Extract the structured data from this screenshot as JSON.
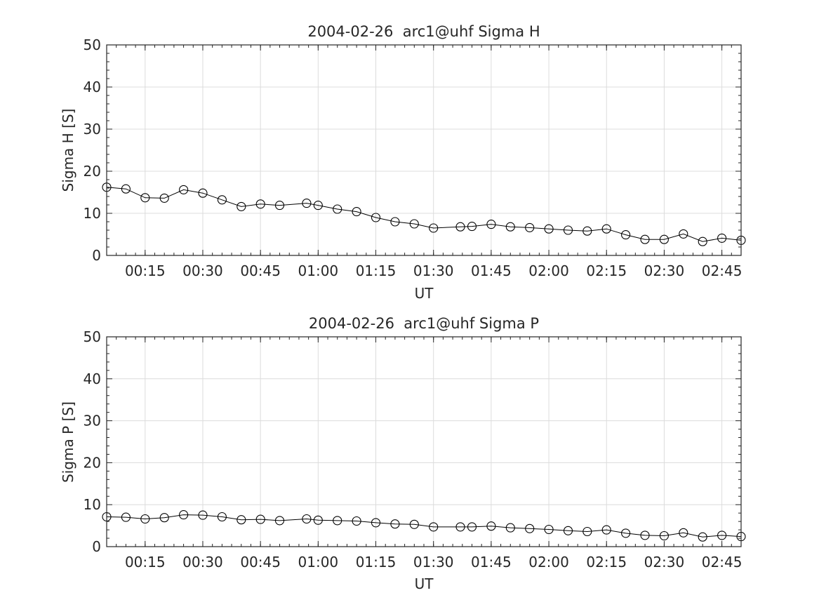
{
  "chart_data": [
    {
      "type": "line",
      "title": "2004-02-26  arc1@uhf Sigma H",
      "xlabel": "UT",
      "ylabel": "Sigma H [S]",
      "xlim": [
        "00:05",
        "02:50"
      ],
      "ylim": [
        0,
        50
      ],
      "yticks": [
        0,
        10,
        20,
        30,
        40,
        50
      ],
      "xticks": [
        "00:15",
        "00:30",
        "00:45",
        "01:00",
        "01:15",
        "01:30",
        "01:45",
        "02:00",
        "02:15",
        "02:30",
        "02:45"
      ],
      "grid": true,
      "marker": "open-circle",
      "line_color": "#000000",
      "x": [
        "00:05",
        "00:10",
        "00:15",
        "00:20",
        "00:25",
        "00:30",
        "00:35",
        "00:40",
        "00:45",
        "00:50",
        "00:57",
        "01:00",
        "01:05",
        "01:10",
        "01:15",
        "01:20",
        "01:25",
        "01:30",
        "01:37",
        "01:40",
        "01:45",
        "01:50",
        "01:55",
        "02:00",
        "02:05",
        "02:10",
        "02:15",
        "02:20",
        "02:25",
        "02:30",
        "02:35",
        "02:40",
        "02:45",
        "02:50"
      ],
      "values": [
        16.2,
        15.8,
        13.7,
        13.6,
        15.6,
        14.8,
        13.2,
        11.6,
        12.2,
        11.9,
        12.4,
        11.9,
        11.0,
        10.4,
        9.0,
        8.0,
        7.5,
        6.5,
        6.8,
        6.9,
        7.4,
        6.8,
        6.6,
        6.3,
        6.0,
        5.8,
        6.3,
        4.9,
        3.8,
        3.8,
        5.1,
        3.3,
        4.1,
        3.6
      ]
    },
    {
      "type": "line",
      "title": "2004-02-26  arc1@uhf Sigma P",
      "xlabel": "UT",
      "ylabel": "Sigma P [S]",
      "xlim": [
        "00:05",
        "02:50"
      ],
      "ylim": [
        0,
        50
      ],
      "yticks": [
        0,
        10,
        20,
        30,
        40,
        50
      ],
      "xticks": [
        "00:15",
        "00:30",
        "00:45",
        "01:00",
        "01:15",
        "01:30",
        "01:45",
        "02:00",
        "02:15",
        "02:30",
        "02:45"
      ],
      "grid": true,
      "marker": "open-circle",
      "line_color": "#000000",
      "x": [
        "00:05",
        "00:10",
        "00:15",
        "00:20",
        "00:25",
        "00:30",
        "00:35",
        "00:40",
        "00:45",
        "00:50",
        "00:57",
        "01:00",
        "01:05",
        "01:10",
        "01:15",
        "01:20",
        "01:25",
        "01:30",
        "01:37",
        "01:40",
        "01:45",
        "01:50",
        "01:55",
        "02:00",
        "02:05",
        "02:10",
        "02:15",
        "02:20",
        "02:25",
        "02:30",
        "02:35",
        "02:40",
        "02:45",
        "02:50"
      ],
      "values": [
        7.1,
        7.0,
        6.6,
        6.9,
        7.6,
        7.5,
        7.1,
        6.4,
        6.5,
        6.2,
        6.6,
        6.3,
        6.2,
        6.1,
        5.7,
        5.4,
        5.3,
        4.7,
        4.7,
        4.7,
        4.9,
        4.5,
        4.3,
        4.1,
        3.8,
        3.6,
        4.0,
        3.2,
        2.7,
        2.6,
        3.3,
        2.3,
        2.7,
        2.4
      ]
    }
  ]
}
